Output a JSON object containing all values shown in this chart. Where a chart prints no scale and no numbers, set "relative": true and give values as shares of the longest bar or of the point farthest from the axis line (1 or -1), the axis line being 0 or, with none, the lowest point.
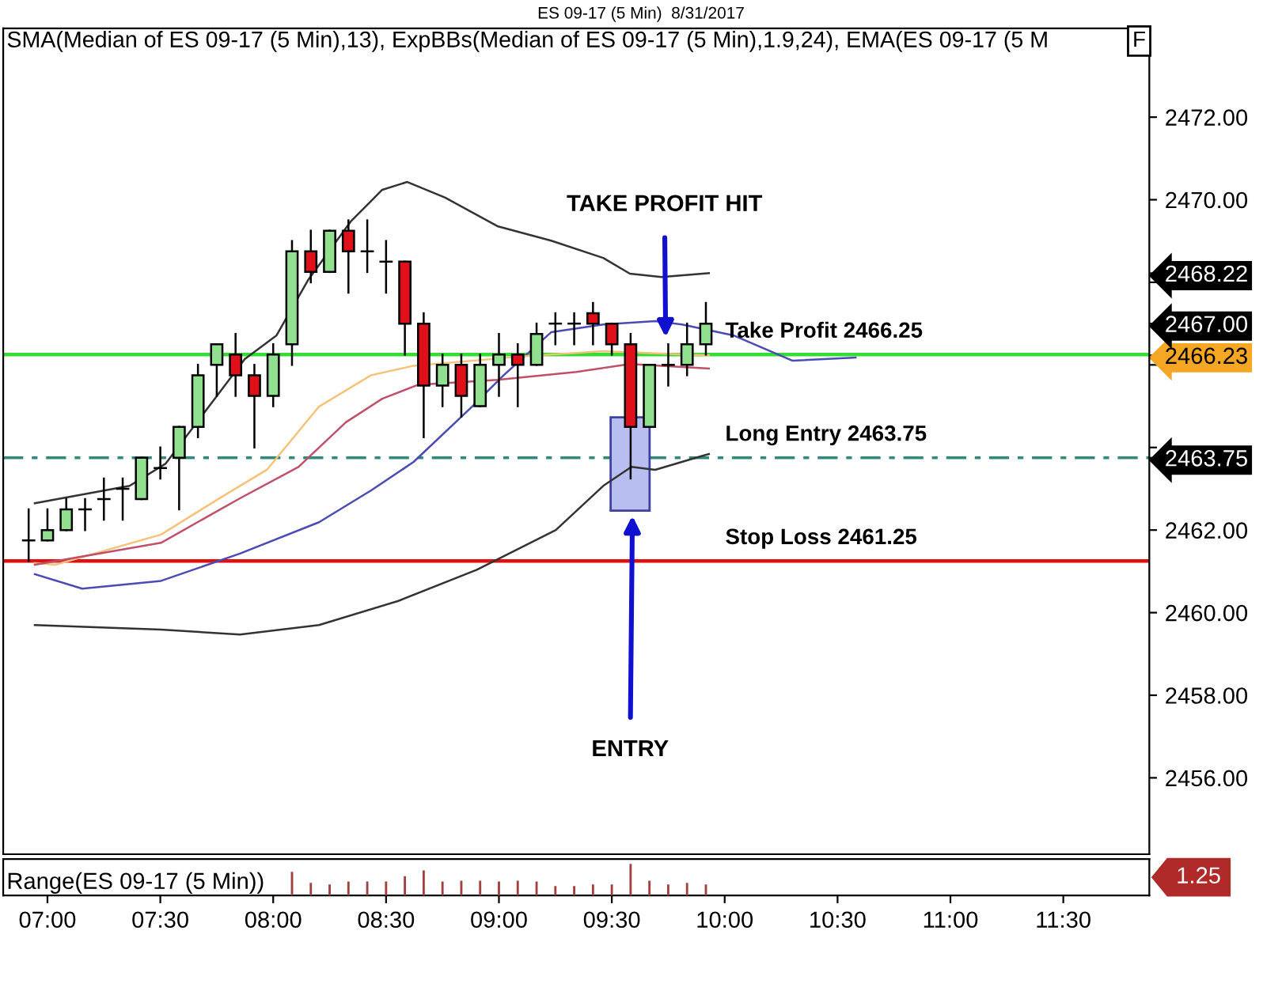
{
  "chart_data": [
    {
      "type": "candlestick",
      "title": "ES 09-17 (5 Min)  8/31/2017",
      "subtitle": "SMA(Median of ES 09-17 (5 Min),13), ExpBBs(Median of ES 09-17 (5 Min),1.9,24), EMA(ES 09-17 (5 M",
      "x": [
        6.9167,
        7.0,
        7.0833,
        7.1667,
        7.25,
        7.3333,
        7.4167,
        7.5,
        7.5833,
        7.6667,
        7.75,
        7.8333,
        7.9167,
        8.0,
        8.0833,
        8.1667,
        8.25,
        8.3333,
        8.4167,
        8.5,
        8.5833,
        8.6667,
        8.75,
        8.8333,
        8.9167,
        9.0,
        9.0833,
        9.1667,
        9.25,
        9.3333,
        9.4167,
        9.5,
        9.5833,
        9.6667,
        9.75,
        9.8333,
        9.9167
      ],
      "ohlc": [
        [
          2461.75,
          2462.5,
          2461.25,
          2461.75
        ],
        [
          2461.75,
          2462.5,
          2461.75,
          2462.0
        ],
        [
          2462.0,
          2462.75,
          2462.0,
          2462.5
        ],
        [
          2462.5,
          2462.75,
          2462.0,
          2462.5
        ],
        [
          2462.75,
          2463.25,
          2462.25,
          2462.75
        ],
        [
          2463.0,
          2463.25,
          2462.25,
          2463.0
        ],
        [
          2462.75,
          2463.75,
          2462.75,
          2463.75
        ],
        [
          2463.5,
          2464.0,
          2463.25,
          2463.5
        ],
        [
          2463.75,
          2464.5,
          2462.5,
          2464.5
        ],
        [
          2464.5,
          2466.0,
          2464.25,
          2465.75
        ],
        [
          2466.0,
          2466.5,
          2465.25,
          2466.5
        ],
        [
          2466.25,
          2466.75,
          2465.25,
          2465.75
        ],
        [
          2465.75,
          2466.0,
          2464.0,
          2465.25
        ],
        [
          2465.25,
          2466.5,
          2465.0,
          2466.25
        ],
        [
          2466.5,
          2469.0,
          2466.0,
          2468.75
        ],
        [
          2468.75,
          2469.25,
          2468.0,
          2468.25
        ],
        [
          2468.25,
          2469.25,
          2468.25,
          2469.25
        ],
        [
          2469.25,
          2469.5,
          2467.75,
          2468.75
        ],
        [
          2468.75,
          2469.5,
          2468.25,
          2468.75
        ],
        [
          2468.5,
          2469.0,
          2467.75,
          2468.5
        ],
        [
          2468.5,
          2468.5,
          2466.25,
          2467.0
        ],
        [
          2467.0,
          2467.25,
          2464.25,
          2465.5
        ],
        [
          2465.5,
          2466.25,
          2465.0,
          2466.0
        ],
        [
          2466.0,
          2466.25,
          2464.75,
          2465.25
        ],
        [
          2465.0,
          2466.25,
          2465.0,
          2466.0
        ],
        [
          2466.0,
          2466.75,
          2465.25,
          2466.25
        ],
        [
          2466.25,
          2466.5,
          2465.0,
          2466.0
        ],
        [
          2466.0,
          2467.0,
          2466.0,
          2466.75
        ],
        [
          2467.0,
          2467.25,
          2466.5,
          2467.0
        ],
        [
          2467.0,
          2467.25,
          2466.5,
          2467.0
        ],
        [
          2467.25,
          2467.5,
          2466.5,
          2467.0
        ],
        [
          2467.0,
          2467.0,
          2466.25,
          2466.5
        ],
        [
          2466.5,
          2466.75,
          2463.25,
          2464.5
        ],
        [
          2464.5,
          2466.0,
          2464.5,
          2466.0
        ],
        [
          2466.0,
          2466.5,
          2465.5,
          2466.0
        ],
        [
          2466.0,
          2467.0,
          2465.75,
          2466.5
        ],
        [
          2466.5,
          2467.5,
          2466.25,
          2467.0
        ]
      ],
      "series": [
        {
          "type": "line",
          "color": "#333333",
          "x": [
            6.944,
            7.364,
            7.524,
            7.874,
            8.014,
            8.154,
            8.343,
            8.483,
            8.594,
            8.762,
            8.993,
            9.231,
            9.462,
            9.58,
            9.72,
            9.93
          ],
          "values": [
            2462.65,
            2463.07,
            2463.61,
            2466.14,
            2466.71,
            2468.05,
            2469.47,
            2470.24,
            2470.43,
            2470.05,
            2469.36,
            2469.01,
            2468.59,
            2468.21,
            2468.13,
            2468.22
          ]
        },
        {
          "type": "line",
          "color": "#333333",
          "x": [
            6.944,
            7.503,
            7.853,
            8.203,
            8.552,
            8.902,
            9.252,
            9.462,
            9.587,
            9.692,
            9.902,
            9.93
          ],
          "values": [
            2459.7,
            2459.59,
            2459.47,
            2459.7,
            2460.28,
            2461.04,
            2462.0,
            2463.07,
            2463.53,
            2463.46,
            2463.8,
            2463.84
          ]
        },
        {
          "type": "line",
          "color": "#4b4bb4",
          "x": [
            6.944,
            7.154,
            7.503,
            7.853,
            8.203,
            8.434,
            8.622,
            8.881,
            9.021,
            9.231,
            9.462,
            9.692,
            9.811,
            10.042,
            10.301,
            10.58
          ],
          "values": [
            2460.93,
            2460.58,
            2460.77,
            2461.43,
            2462.19,
            2462.96,
            2463.65,
            2464.99,
            2465.75,
            2466.79,
            2466.98,
            2467.06,
            2466.98,
            2466.71,
            2466.1,
            2466.18
          ]
        },
        {
          "type": "line",
          "color": "#f5c27a",
          "x": [
            6.944,
            7.035,
            7.503,
            7.783,
            7.972,
            8.203,
            8.434,
            8.622,
            9.112,
            9.462,
            9.93
          ],
          "values": [
            2461.2,
            2461.16,
            2461.89,
            2462.84,
            2463.46,
            2464.99,
            2465.75,
            2465.98,
            2466.21,
            2466.33,
            2466.23
          ]
        },
        {
          "type": "line",
          "color": "#c0506a",
          "x": [
            6.944,
            7.503,
            7.853,
            8.112,
            8.322,
            8.483,
            8.643,
            8.993,
            9.343,
            9.58,
            9.93
          ],
          "values": [
            2461.16,
            2461.69,
            2462.77,
            2463.53,
            2464.61,
            2465.18,
            2465.52,
            2465.64,
            2465.83,
            2466.02,
            2465.91
          ]
        }
      ],
      "ref_lines": [
        {
          "axis": "y",
          "value": 2466.25,
          "label": "Take Profit 2466.25",
          "color": "#33dd33",
          "line_style": "solid"
        },
        {
          "axis": "y",
          "value": 2463.75,
          "label": "Long Entry 2463.75",
          "color": "#2e8b7a",
          "line_style": "dashed"
        },
        {
          "axis": "y",
          "value": 2461.25,
          "label": "Stop Loss 2461.25",
          "color": "#e01010",
          "line_style": "solid"
        }
      ],
      "annotations": [
        "TAKE PROFIT HIT",
        "ENTRY",
        "F"
      ],
      "xlim": [
        6.804,
        11.881
      ],
      "ylim": [
        2454.15,
        2474.15
      ],
      "yticks": [
        {
          "value": 2456,
          "label": "2456.00"
        },
        {
          "value": 2458,
          "label": "2458.00"
        },
        {
          "value": 2460,
          "label": "2460.00"
        },
        {
          "value": 2462,
          "label": "2462.00"
        },
        {
          "value": 2463.75,
          "label": "2463.75"
        },
        {
          "value": 2464,
          "label": null
        },
        {
          "value": 2466,
          "label": null
        },
        {
          "value": 2466.23,
          "label": "2466.23"
        },
        {
          "value": 2467,
          "label": "2467.00"
        },
        {
          "value": 2468,
          "label": null
        },
        {
          "value": 2468.22,
          "label": "2468.22"
        },
        {
          "value": 2470,
          "label": "2470.00"
        },
        {
          "value": 2472,
          "label": "2472.00"
        }
      ],
      "tick_labels": "y",
      "grid": false,
      "legend": false
    },
    {
      "type": "bar",
      "title": "Range(ES 09-17 (5 Min))",
      "relative": true,
      "color": "#a04040",
      "x": [
        8.0833,
        8.1667,
        8.25,
        8.3333,
        8.4167,
        8.5,
        8.5833,
        8.6667,
        8.75,
        8.8333,
        8.9167,
        9.0,
        9.0833,
        9.1667,
        9.25,
        9.3333,
        9.4167,
        9.5,
        9.5833,
        9.6667,
        9.75,
        9.8333,
        9.9167
      ],
      "values": [
        0.75,
        0.4,
        0.35,
        0.44,
        0.44,
        0.44,
        0.61,
        0.79,
        0.44,
        0.47,
        0.47,
        0.44,
        0.47,
        0.44,
        0.3,
        0.3,
        0.35,
        0.35,
        1.0,
        0.47,
        0.35,
        0.4,
        0.35
      ],
      "annotations": [
        "1.25"
      ],
      "xlim": [
        6.804,
        11.881
      ],
      "xticks": [
        {
          "value": 7,
          "label": "07:00"
        },
        {
          "value": 7.5,
          "label": "07:30"
        },
        {
          "value": 8,
          "label": "08:00"
        },
        {
          "value": 8.5,
          "label": "08:30"
        },
        {
          "value": 9,
          "label": "09:00"
        },
        {
          "value": 9.5,
          "label": "09:30"
        },
        {
          "value": 10,
          "label": "10:00"
        },
        {
          "value": 10.5,
          "label": "10:30"
        },
        {
          "value": 11,
          "label": "11:00"
        },
        {
          "value": 11.5,
          "label": "11:30"
        }
      ],
      "tick_labels": "x",
      "grid": false,
      "legend": false
    }
  ]
}
